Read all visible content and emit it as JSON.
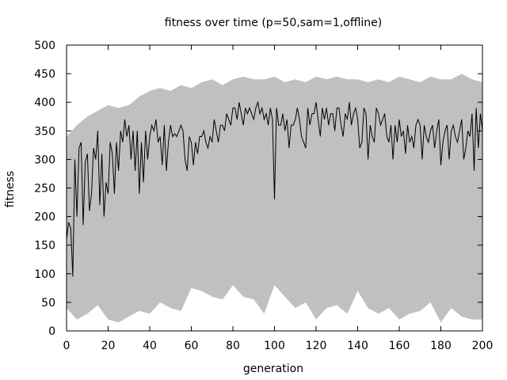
{
  "chart_data": {
    "type": "line",
    "title": "fitness over time (p=50,sam=1,offline)",
    "xlabel": "generation",
    "ylabel": "fitness",
    "xlim": [
      0,
      200
    ],
    "ylim": [
      0,
      500
    ],
    "xticks": [
      0,
      20,
      40,
      60,
      80,
      100,
      120,
      140,
      160,
      180,
      200
    ],
    "yticks": [
      0,
      50,
      100,
      150,
      200,
      250,
      300,
      350,
      400,
      450,
      500
    ],
    "grid": false,
    "legend": "none",
    "colors": {
      "band": "#c0c0c0",
      "line": "#000000",
      "axes": "#000000"
    },
    "band": {
      "x": [
        0,
        5,
        10,
        15,
        20,
        25,
        30,
        35,
        40,
        45,
        50,
        55,
        60,
        65,
        70,
        75,
        80,
        85,
        90,
        95,
        100,
        105,
        110,
        115,
        120,
        125,
        130,
        135,
        140,
        145,
        150,
        155,
        160,
        165,
        170,
        175,
        180,
        185,
        190,
        195,
        200
      ],
      "max": [
        340,
        360,
        375,
        385,
        395,
        390,
        395,
        410,
        420,
        425,
        420,
        430,
        425,
        435,
        440,
        430,
        440,
        445,
        440,
        440,
        445,
        435,
        440,
        435,
        445,
        440,
        445,
        440,
        440,
        435,
        440,
        435,
        445,
        440,
        435,
        445,
        440,
        440,
        450,
        440,
        435
      ],
      "min": [
        40,
        20,
        30,
        45,
        20,
        15,
        25,
        35,
        30,
        50,
        40,
        35,
        75,
        70,
        60,
        55,
        80,
        60,
        55,
        30,
        80,
        60,
        40,
        50,
        20,
        40,
        45,
        30,
        70,
        40,
        30,
        40,
        20,
        30,
        35,
        50,
        15,
        40,
        25,
        20,
        20
      ]
    },
    "series": [
      {
        "x": [
          0,
          1,
          2,
          3,
          4,
          5,
          6,
          7,
          8,
          9,
          10,
          11,
          12,
          13,
          14,
          15,
          16,
          17,
          18,
          19,
          20,
          21,
          22,
          23,
          24,
          25,
          26,
          27,
          28,
          29,
          30,
          31,
          32,
          33,
          34,
          35,
          36,
          37,
          38,
          39,
          40,
          41,
          42,
          43,
          44,
          45,
          46,
          47,
          48,
          49,
          50,
          51,
          52,
          53,
          54,
          55,
          56,
          57,
          58,
          59,
          60,
          61,
          62,
          63,
          64,
          65,
          66,
          67,
          68,
          69,
          70,
          71,
          72,
          73,
          74,
          75,
          76,
          77,
          78,
          79,
          80,
          81,
          82,
          83,
          84,
          85,
          86,
          87,
          88,
          89,
          90,
          91,
          92,
          93,
          94,
          95,
          96,
          97,
          98,
          99,
          100,
          101,
          102,
          103,
          104,
          105,
          106,
          107,
          108,
          109,
          110,
          111,
          112,
          113,
          114,
          115,
          116,
          117,
          118,
          119,
          120,
          121,
          122,
          123,
          124,
          125,
          126,
          127,
          128,
          129,
          130,
          131,
          132,
          133,
          134,
          135,
          136,
          137,
          138,
          139,
          140,
          141,
          142,
          143,
          144,
          145,
          146,
          147,
          148,
          149,
          150,
          151,
          152,
          153,
          154,
          155,
          156,
          157,
          158,
          159,
          160,
          161,
          162,
          163,
          164,
          165,
          166,
          167,
          168,
          169,
          170,
          171,
          172,
          173,
          174,
          175,
          176,
          177,
          178,
          179,
          180,
          181,
          182,
          183,
          184,
          185,
          186,
          187,
          188,
          189,
          190,
          191,
          192,
          193,
          194,
          195,
          196,
          197,
          198,
          199,
          200
        ],
        "values": [
          160,
          190,
          180,
          95,
          300,
          200,
          320,
          330,
          185,
          295,
          310,
          210,
          240,
          320,
          300,
          350,
          220,
          310,
          200,
          260,
          240,
          330,
          310,
          240,
          330,
          280,
          350,
          330,
          370,
          340,
          360,
          300,
          350,
          280,
          350,
          240,
          330,
          260,
          350,
          300,
          340,
          360,
          350,
          370,
          330,
          340,
          290,
          360,
          280,
          330,
          360,
          340,
          345,
          340,
          350,
          360,
          350,
          300,
          280,
          340,
          330,
          290,
          330,
          310,
          340,
          340,
          350,
          330,
          320,
          340,
          330,
          370,
          350,
          330,
          360,
          360,
          350,
          380,
          370,
          360,
          390,
          390,
          370,
          400,
          380,
          360,
          390,
          380,
          390,
          380,
          370,
          390,
          400,
          380,
          390,
          370,
          380,
          360,
          390,
          370,
          230,
          390,
          360,
          360,
          380,
          350,
          370,
          320,
          360,
          360,
          370,
          390,
          370,
          340,
          330,
          320,
          390,
          360,
          380,
          380,
          400,
          370,
          340,
          390,
          370,
          390,
          360,
          380,
          380,
          350,
          390,
          390,
          360,
          340,
          380,
          370,
          400,
          360,
          380,
          390,
          370,
          320,
          330,
          390,
          380,
          300,
          360,
          340,
          330,
          390,
          380,
          360,
          370,
          380,
          340,
          330,
          360,
          300,
          360,
          330,
          370,
          340,
          350,
          310,
          360,
          330,
          340,
          320,
          360,
          370,
          360,
          300,
          360,
          340,
          330,
          350,
          360,
          320,
          350,
          370,
          290,
          330,
          350,
          360,
          300,
          350,
          360,
          340,
          330,
          350,
          370,
          300,
          320,
          350,
          340,
          380,
          280,
          390,
          320,
          380,
          350
        ]
      }
    ]
  }
}
